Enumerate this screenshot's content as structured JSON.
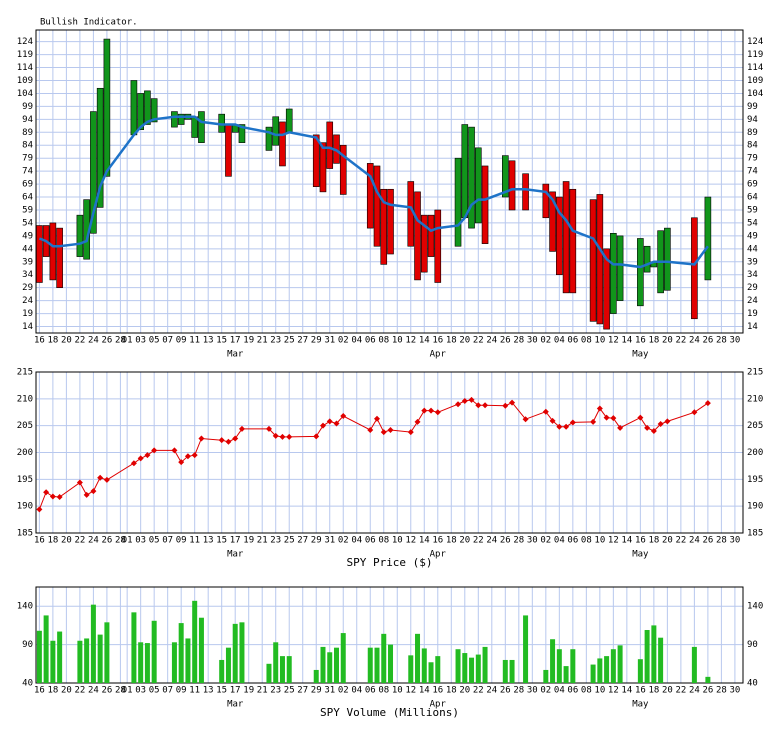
{
  "chart_data": [
    {
      "type": "floating_bar",
      "title": "Bullish Indicator.",
      "x": [
        0,
        1,
        2,
        3,
        6,
        7,
        8,
        9,
        10,
        14,
        15,
        16,
        17,
        20,
        21,
        22,
        23,
        24,
        27,
        28,
        29,
        30,
        34,
        35,
        36,
        37,
        41,
        42,
        43,
        44,
        45,
        49,
        50,
        51,
        52,
        55,
        56,
        57,
        58,
        59,
        62,
        63,
        64,
        65,
        66,
        69,
        70,
        72,
        75,
        76,
        77,
        78,
        79,
        82,
        83,
        84,
        85,
        86,
        89,
        90,
        91,
        92,
        93,
        97,
        99
      ],
      "start": [
        53,
        53,
        54,
        52,
        41,
        40,
        50,
        60,
        72,
        88,
        90,
        92,
        93,
        91,
        92,
        94,
        87,
        85,
        89,
        92,
        89,
        85,
        82,
        84,
        93,
        89,
        88,
        85,
        93,
        88,
        84,
        77,
        76,
        67,
        67,
        70,
        66,
        57,
        57,
        59,
        45,
        56,
        52,
        54,
        76,
        64,
        78,
        73,
        69,
        66,
        64,
        70,
        67,
        63,
        65,
        44,
        19,
        24,
        22,
        35,
        37,
        27,
        28,
        56,
        32
      ],
      "end": [
        31,
        41,
        32,
        29,
        57,
        63,
        97,
        106,
        125,
        109,
        104,
        105,
        102,
        97,
        96,
        96,
        95,
        97,
        96,
        72,
        92,
        92,
        91,
        95,
        76,
        98,
        68,
        66,
        75,
        77,
        65,
        52,
        45,
        38,
        42,
        45,
        32,
        35,
        41,
        31,
        79,
        92,
        91,
        83,
        46,
        80,
        59,
        59,
        56,
        43,
        34,
        27,
        27,
        16,
        15,
        13,
        50,
        49,
        48,
        45,
        39,
        51,
        52,
        17,
        64
      ],
      "average": [
        48,
        47,
        45,
        45,
        46,
        47,
        58,
        68,
        74,
        88,
        91,
        93,
        94,
        95,
        95,
        95,
        95,
        93,
        92,
        92,
        92,
        91,
        89,
        88,
        88,
        89,
        87,
        83,
        83,
        82,
        80,
        72,
        66,
        62,
        61,
        60,
        55,
        53,
        51,
        52,
        53,
        56,
        61,
        63,
        63,
        66,
        67,
        67,
        66,
        63,
        58,
        55,
        51,
        48,
        44,
        40,
        38,
        38,
        37,
        38,
        39,
        39,
        39,
        38,
        45
      ],
      "up_color": "#11951b",
      "down_color": "#e00000",
      "line_color": "#1e73c8",
      "xlim": [
        -0.5,
        104.2
      ],
      "ylim": [
        11.5,
        128.5
      ],
      "yticks": [
        14,
        19,
        24,
        29,
        34,
        39,
        44,
        49,
        54,
        59,
        64,
        69,
        74,
        79,
        84,
        89,
        94,
        99,
        104,
        109,
        114,
        119,
        124
      ],
      "xticks": [
        {
          "value": 0,
          "label": "16"
        },
        {
          "value": 2,
          "label": "18"
        },
        {
          "value": 4,
          "label": "20"
        },
        {
          "value": 6,
          "label": "22"
        },
        {
          "value": 8,
          "label": "24"
        },
        {
          "value": 10,
          "label": "26"
        },
        {
          "value": 12,
          "label": "28"
        },
        {
          "value": 13,
          "label": "01"
        },
        {
          "value": 15,
          "label": "03"
        },
        {
          "value": 17,
          "label": "05"
        },
        {
          "value": 19,
          "label": "07"
        },
        {
          "value": 21,
          "label": "09"
        },
        {
          "value": 23,
          "label": "11"
        },
        {
          "value": 25,
          "label": "13"
        },
        {
          "value": 27,
          "label": "15"
        },
        {
          "value": 29,
          "label": "17"
        },
        {
          "value": 31,
          "label": "19"
        },
        {
          "value": 33,
          "label": "21"
        },
        {
          "value": 35,
          "label": "23"
        },
        {
          "value": 37,
          "label": "25"
        },
        {
          "value": 39,
          "label": "27"
        },
        {
          "value": 41,
          "label": "29"
        },
        {
          "value": 43,
          "label": "31"
        },
        {
          "value": 45,
          "label": "02"
        },
        {
          "value": 47,
          "label": "04"
        },
        {
          "value": 49,
          "label": "06"
        },
        {
          "value": 51,
          "label": "08"
        },
        {
          "value": 53,
          "label": "10"
        },
        {
          "value": 55,
          "label": "12"
        },
        {
          "value": 57,
          "label": "14"
        },
        {
          "value": 59,
          "label": "16"
        },
        {
          "value": 61,
          "label": "18"
        },
        {
          "value": 63,
          "label": "20"
        },
        {
          "value": 65,
          "label": "22"
        },
        {
          "value": 67,
          "label": "24"
        },
        {
          "value": 69,
          "label": "26"
        },
        {
          "value": 71,
          "label": "28"
        },
        {
          "value": 73,
          "label": "30"
        },
        {
          "value": 75,
          "label": "02"
        },
        {
          "value": 77,
          "label": "04"
        },
        {
          "value": 79,
          "label": "06"
        },
        {
          "value": 81,
          "label": "08"
        },
        {
          "value": 83,
          "label": "10"
        },
        {
          "value": 85,
          "label": "12"
        },
        {
          "value": 87,
          "label": "14"
        },
        {
          "value": 89,
          "label": "16"
        },
        {
          "value": 91,
          "label": "18"
        },
        {
          "value": 93,
          "label": "20"
        },
        {
          "value": 95,
          "label": "22"
        },
        {
          "value": 97,
          "label": "24"
        },
        {
          "value": 99,
          "label": "26"
        },
        {
          "value": 101,
          "label": "28"
        },
        {
          "value": 103,
          "label": "30"
        }
      ],
      "month_ticks": [
        {
          "value": 29,
          "label": "Mar"
        },
        {
          "value": 59,
          "label": "Apr"
        },
        {
          "value": 89,
          "label": "May"
        }
      ],
      "grid": true
    },
    {
      "type": "line",
      "xlabel": "SPY Price ($)",
      "x": [
        0,
        1,
        2,
        3,
        6,
        7,
        8,
        9,
        10,
        14,
        15,
        16,
        17,
        20,
        21,
        22,
        23,
        24,
        27,
        28,
        29,
        30,
        34,
        35,
        36,
        37,
        41,
        42,
        43,
        44,
        45,
        49,
        50,
        51,
        52,
        55,
        56,
        57,
        58,
        59,
        62,
        63,
        64,
        65,
        66,
        69,
        70,
        72,
        75,
        76,
        77,
        78,
        79,
        82,
        83,
        84,
        85,
        86,
        89,
        90,
        91,
        92,
        93,
        97,
        99
      ],
      "values": [
        189.4,
        192.6,
        191.8,
        191.7,
        194.4,
        192.1,
        192.8,
        195.3,
        194.9,
        198.0,
        198.9,
        199.5,
        200.4,
        200.4,
        198.2,
        199.3,
        199.5,
        202.6,
        202.3,
        202.0,
        202.6,
        204.4,
        204.4,
        203.1,
        202.9,
        202.9,
        203.0,
        205.0,
        205.8,
        205.4,
        206.8,
        204.2,
        206.3,
        203.8,
        204.2,
        203.8,
        205.7,
        207.8,
        207.8,
        207.5,
        209.0,
        209.6,
        209.8,
        208.8,
        208.8,
        208.7,
        209.3,
        206.2,
        207.6,
        205.9,
        204.8,
        204.8,
        205.6,
        205.7,
        208.2,
        206.5,
        206.4,
        204.6,
        206.5,
        204.6,
        204.0,
        205.3,
        205.8,
        207.5,
        209.2
      ],
      "color": "#e00000",
      "xlim": [
        -0.5,
        104.2
      ],
      "ylim": [
        185,
        215
      ],
      "yticks": [
        185,
        190,
        195,
        200,
        205,
        210,
        215
      ],
      "xticks": [
        {
          "value": 0,
          "label": "16"
        },
        {
          "value": 2,
          "label": "18"
        },
        {
          "value": 4,
          "label": "20"
        },
        {
          "value": 6,
          "label": "22"
        },
        {
          "value": 8,
          "label": "24"
        },
        {
          "value": 10,
          "label": "26"
        },
        {
          "value": 12,
          "label": "28"
        },
        {
          "value": 13,
          "label": "01"
        },
        {
          "value": 15,
          "label": "03"
        },
        {
          "value": 17,
          "label": "05"
        },
        {
          "value": 19,
          "label": "07"
        },
        {
          "value": 21,
          "label": "09"
        },
        {
          "value": 23,
          "label": "11"
        },
        {
          "value": 25,
          "label": "13"
        },
        {
          "value": 27,
          "label": "15"
        },
        {
          "value": 29,
          "label": "17"
        },
        {
          "value": 31,
          "label": "19"
        },
        {
          "value": 33,
          "label": "21"
        },
        {
          "value": 35,
          "label": "23"
        },
        {
          "value": 37,
          "label": "25"
        },
        {
          "value": 39,
          "label": "27"
        },
        {
          "value": 41,
          "label": "29"
        },
        {
          "value": 43,
          "label": "31"
        },
        {
          "value": 45,
          "label": "02"
        },
        {
          "value": 47,
          "label": "04"
        },
        {
          "value": 49,
          "label": "06"
        },
        {
          "value": 51,
          "label": "08"
        },
        {
          "value": 53,
          "label": "10"
        },
        {
          "value": 55,
          "label": "12"
        },
        {
          "value": 57,
          "label": "14"
        },
        {
          "value": 59,
          "label": "16"
        },
        {
          "value": 61,
          "label": "18"
        },
        {
          "value": 63,
          "label": "20"
        },
        {
          "value": 65,
          "label": "22"
        },
        {
          "value": 67,
          "label": "24"
        },
        {
          "value": 69,
          "label": "26"
        },
        {
          "value": 71,
          "label": "28"
        },
        {
          "value": 73,
          "label": "30"
        },
        {
          "value": 75,
          "label": "02"
        },
        {
          "value": 77,
          "label": "04"
        },
        {
          "value": 79,
          "label": "06"
        },
        {
          "value": 81,
          "label": "08"
        },
        {
          "value": 83,
          "label": "10"
        },
        {
          "value": 85,
          "label": "12"
        },
        {
          "value": 87,
          "label": "14"
        },
        {
          "value": 89,
          "label": "16"
        },
        {
          "value": 91,
          "label": "18"
        },
        {
          "value": 93,
          "label": "20"
        },
        {
          "value": 95,
          "label": "22"
        },
        {
          "value": 97,
          "label": "24"
        },
        {
          "value": 99,
          "label": "26"
        },
        {
          "value": 101,
          "label": "28"
        },
        {
          "value": 103,
          "label": "30"
        }
      ],
      "month_ticks": [
        {
          "value": 29,
          "label": "Mar"
        },
        {
          "value": 59,
          "label": "Apr"
        },
        {
          "value": 89,
          "label": "May"
        }
      ],
      "grid": true
    },
    {
      "type": "bar",
      "xlabel": "SPY Volume (Millions)",
      "x": [
        0,
        1,
        2,
        3,
        6,
        7,
        8,
        9,
        10,
        14,
        15,
        16,
        17,
        20,
        21,
        22,
        23,
        24,
        27,
        28,
        29,
        30,
        34,
        35,
        36,
        37,
        41,
        42,
        43,
        44,
        45,
        49,
        50,
        51,
        52,
        55,
        56,
        57,
        58,
        59,
        62,
        63,
        64,
        65,
        66,
        69,
        70,
        72,
        75,
        76,
        77,
        78,
        79,
        82,
        83,
        84,
        85,
        86,
        89,
        90,
        91,
        92,
        93,
        97,
        99
      ],
      "values": [
        108,
        128,
        95,
        107,
        95,
        98,
        142,
        103,
        119,
        132,
        93,
        92,
        121,
        93,
        118,
        98,
        147,
        125,
        70,
        86,
        117,
        119,
        65,
        93,
        75,
        75,
        57,
        87,
        80,
        86,
        105,
        86,
        86,
        104,
        90,
        76,
        104,
        85,
        67,
        75,
        84,
        79,
        73,
        77,
        87,
        70,
        70,
        128,
        57,
        97,
        84,
        62,
        84,
        64,
        72,
        75,
        84,
        89,
        71,
        109,
        115,
        99,
        null,
        87,
        48
      ],
      "color": "#22bb22",
      "xlim": [
        -0.5,
        104.2
      ],
      "ylim": [
        40,
        165
      ],
      "yticks": [
        40,
        90,
        140
      ],
      "xticks": [
        {
          "value": 0,
          "label": "16"
        },
        {
          "value": 2,
          "label": "18"
        },
        {
          "value": 4,
          "label": "20"
        },
        {
          "value": 6,
          "label": "22"
        },
        {
          "value": 8,
          "label": "24"
        },
        {
          "value": 10,
          "label": "26"
        },
        {
          "value": 12,
          "label": "28"
        },
        {
          "value": 13,
          "label": "01"
        },
        {
          "value": 15,
          "label": "03"
        },
        {
          "value": 17,
          "label": "05"
        },
        {
          "value": 19,
          "label": "07"
        },
        {
          "value": 21,
          "label": "09"
        },
        {
          "value": 23,
          "label": "11"
        },
        {
          "value": 25,
          "label": "13"
        },
        {
          "value": 27,
          "label": "15"
        },
        {
          "value": 29,
          "label": "17"
        },
        {
          "value": 31,
          "label": "19"
        },
        {
          "value": 33,
          "label": "21"
        },
        {
          "value": 35,
          "label": "23"
        },
        {
          "value": 37,
          "label": "25"
        },
        {
          "value": 39,
          "label": "27"
        },
        {
          "value": 41,
          "label": "29"
        },
        {
          "value": 43,
          "label": "31"
        },
        {
          "value": 45,
          "label": "02"
        },
        {
          "value": 47,
          "label": "04"
        },
        {
          "value": 49,
          "label": "06"
        },
        {
          "value": 51,
          "label": "08"
        },
        {
          "value": 53,
          "label": "10"
        },
        {
          "value": 55,
          "label": "12"
        },
        {
          "value": 57,
          "label": "14"
        },
        {
          "value": 59,
          "label": "16"
        },
        {
          "value": 61,
          "label": "18"
        },
        {
          "value": 63,
          "label": "20"
        },
        {
          "value": 65,
          "label": "22"
        },
        {
          "value": 67,
          "label": "24"
        },
        {
          "value": 69,
          "label": "26"
        },
        {
          "value": 71,
          "label": "28"
        },
        {
          "value": 73,
          "label": "30"
        },
        {
          "value": 75,
          "label": "02"
        },
        {
          "value": 77,
          "label": "04"
        },
        {
          "value": 79,
          "label": "06"
        },
        {
          "value": 81,
          "label": "08"
        },
        {
          "value": 83,
          "label": "10"
        },
        {
          "value": 85,
          "label": "12"
        },
        {
          "value": 87,
          "label": "14"
        },
        {
          "value": 89,
          "label": "16"
        },
        {
          "value": 91,
          "label": "18"
        },
        {
          "value": 93,
          "label": "20"
        },
        {
          "value": 95,
          "label": "22"
        },
        {
          "value": 97,
          "label": "24"
        },
        {
          "value": 99,
          "label": "26"
        },
        {
          "value": 101,
          "label": "28"
        },
        {
          "value": 103,
          "label": "30"
        }
      ],
      "month_ticks": [
        {
          "value": 29,
          "label": "Mar"
        },
        {
          "value": 59,
          "label": "Apr"
        },
        {
          "value": 89,
          "label": "May"
        }
      ],
      "grid": true
    }
  ]
}
